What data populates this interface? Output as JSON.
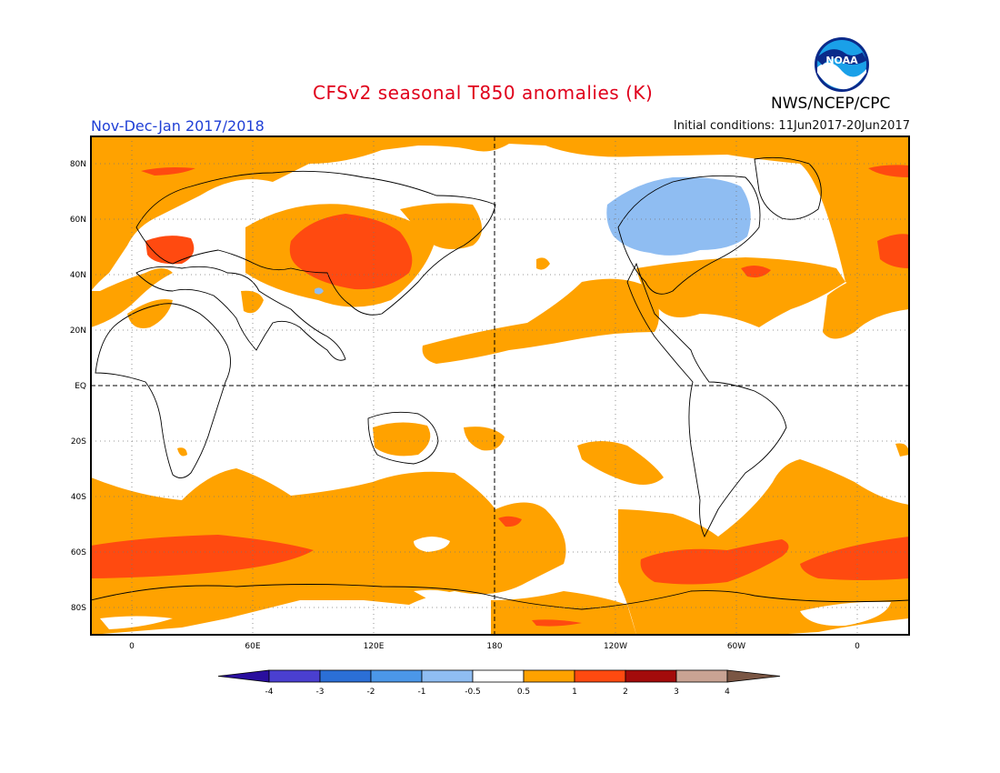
{
  "header": {
    "title": "CFSv2 seasonal T850 anomalies (K)",
    "agency": "NWS/NCEP/CPC",
    "period": "Nov-Dec-Jan 2017/2018",
    "initial_conditions": "Initial conditions: 11Jun2017-20Jun2017"
  },
  "logo": {
    "icon": "noaa-logo",
    "text": "NOAA"
  },
  "map": {
    "lat_labels": [
      "80N",
      "60N",
      "40N",
      "20N",
      "EQ",
      "20S",
      "40S",
      "60S",
      "80S"
    ],
    "lon_labels": [
      "0",
      "60E",
      "120E",
      "180",
      "120W",
      "60W",
      "0"
    ]
  },
  "colorbar": {
    "tick_labels": [
      "-4",
      "-3",
      "-2",
      "-1",
      "-0.5",
      "0.5",
      "1",
      "2",
      "3",
      "4"
    ],
    "colors": [
      "#2a0f9e",
      "#4a3fd0",
      "#2b6fd6",
      "#4b97e8",
      "#8fbdf2",
      "#ffffff",
      "#ffa200",
      "#ff4a10",
      "#a30b0b",
      "#c9a393",
      "#7a5644"
    ]
  },
  "colors": {
    "anomaly_0_5_to_1": "#ffa200",
    "anomaly_1_to_2": "#ff4a10",
    "anomaly_2_to_3": "#a30b0b",
    "anomaly_neg_1_to_neg_0_5": "#8fbdf2",
    "title": "#e0001b",
    "period": "#1f3fd6"
  }
}
